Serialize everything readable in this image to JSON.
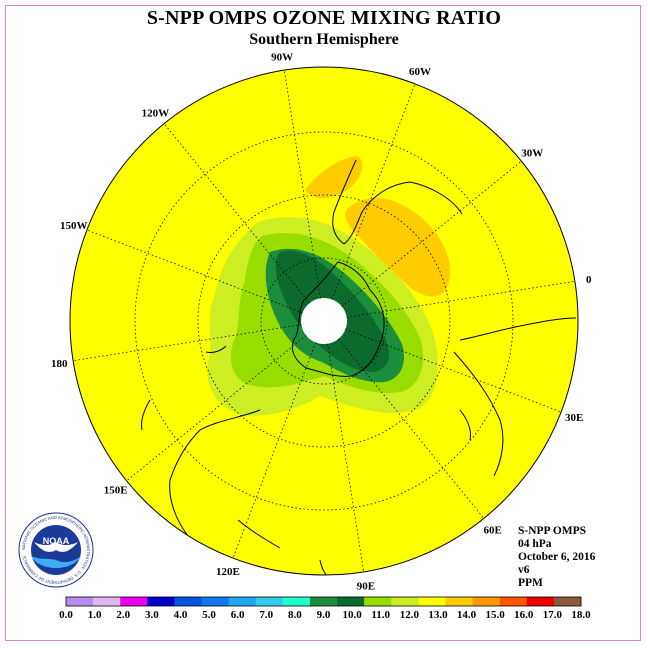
{
  "title": "S-NPP OMPS OZONE MIXING RATIO",
  "subtitle": "Southern Hemisphere",
  "longitude_labels": [
    {
      "text": "90W",
      "lon": -90
    },
    {
      "text": "60W",
      "lon": -60
    },
    {
      "text": "30W",
      "lon": -30
    },
    {
      "text": "0",
      "lon": 0
    },
    {
      "text": "30E",
      "lon": 30
    },
    {
      "text": "60E",
      "lon": 60
    },
    {
      "text": "90E",
      "lon": 90
    },
    {
      "text": "120E",
      "lon": 120
    },
    {
      "text": "150E",
      "lon": 150
    },
    {
      "text": "180",
      "lon": 180
    },
    {
      "text": "150W",
      "lon": -150
    },
    {
      "text": "120W",
      "lon": -120
    }
  ],
  "info": {
    "product": "S-NPP OMPS",
    "level": "04 hPa",
    "date": "October 6, 2016",
    "version": "v6",
    "units": "PPM"
  },
  "logo": {
    "text": "NOAA",
    "ring_text": "NATIONAL OCEANIC AND ATMOSPHERIC ADMINISTRATION · U.S. DEPARTMENT OF COMMERCE"
  },
  "colorbar": {
    "labels": [
      "0.0",
      "1.0",
      "2.0",
      "3.0",
      "4.0",
      "5.0",
      "6.0",
      "7.0",
      "8.0",
      "9.0",
      "10.0",
      "11.0",
      "12.0",
      "13.0",
      "14.0",
      "15.0",
      "16.0",
      "17.0",
      "18.0"
    ],
    "colors": [
      "#b98cf2",
      "#e0b6f2",
      "#ee00ee",
      "#0000cc",
      "#0055dd",
      "#1177ee",
      "#22a6ee",
      "#33ccee",
      "#22ffcc",
      "#1b8d3c",
      "#0d6a2e",
      "#99dd00",
      "#ccee22",
      "#ffff00",
      "#ffcc00",
      "#ff9900",
      "#ff5500",
      "#ee0000",
      "#8b5a3c"
    ]
  },
  "map": {
    "background_value_ppm": "13.0-14.0",
    "ozone_max_ppm": "10.0-11.0",
    "ozone_high_region": "14.0-15.0"
  }
}
